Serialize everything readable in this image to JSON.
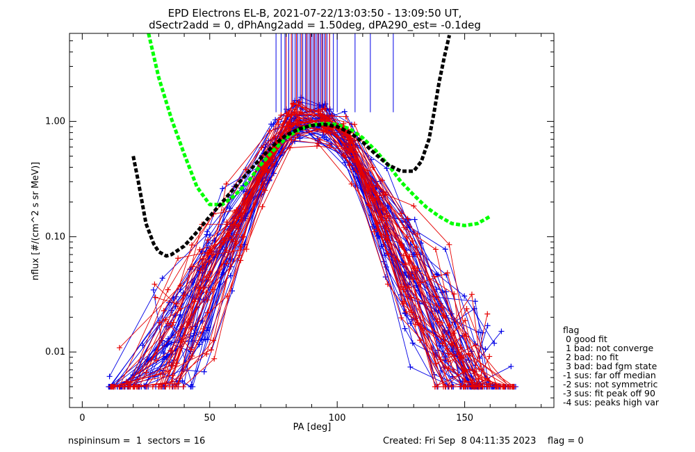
{
  "chart_data": {
    "type": "scatter",
    "title": "EPD Electrons EL-B, 2021-07-22/13:03:50 - 13:09:50 UT,",
    "subtitle": "dSectr2add = 0, dPhAng2add = 1.50deg, dPA290_est=  -0.1deg",
    "xlabel": "PA [deg]",
    "ylabel": "nflux [#/(cm^2 s sr MeV)]",
    "xlim": [
      -5,
      185
    ],
    "ylim": [
      0.0033,
      5.8
    ],
    "y_scale": "log",
    "x_ticks": [
      0,
      50,
      100,
      150
    ],
    "x_tick_labels": [
      "0",
      "50",
      "100",
      "150"
    ],
    "y_ticks": [
      0.01,
      0.1,
      1.0
    ],
    "y_tick_labels": [
      "0.01",
      "0.10",
      "1.00"
    ],
    "grid": false,
    "series": [
      {
        "color": "#0000e6",
        "seed": 7,
        "tracks": 42,
        "vertical_marks_x": [
          76,
          78,
          79.5,
          81,
          82.5,
          83.5,
          84.5,
          85.5,
          86.5,
          87.5,
          88.2,
          89,
          89.8,
          90.5,
          91.3,
          92,
          92.8,
          93.5,
          94.3,
          95,
          96,
          97,
          98.5,
          100,
          107,
          113,
          122
        ]
      },
      {
        "color": "#e60000",
        "seed": 23,
        "tracks": 34,
        "vertical_marks_x": [
          80,
          82,
          84,
          86,
          88,
          89.5,
          91,
          92.5,
          94,
          95.5,
          97
        ]
      },
      {
        "color": "#00ff00",
        "style": "dashed-fit",
        "x": [
          26,
          30,
          35,
          40,
          45,
          50,
          55,
          60,
          65,
          70,
          75,
          80,
          85,
          90,
          95,
          100,
          105,
          110,
          115,
          120,
          125,
          130,
          135,
          140,
          145,
          150,
          155,
          160
        ],
        "y": [
          5.8,
          2.4,
          1.05,
          0.52,
          0.27,
          0.19,
          0.19,
          0.23,
          0.3,
          0.42,
          0.56,
          0.72,
          0.85,
          0.93,
          0.96,
          0.94,
          0.86,
          0.72,
          0.56,
          0.42,
          0.3,
          0.23,
          0.18,
          0.15,
          0.13,
          0.125,
          0.13,
          0.15
        ]
      },
      {
        "color": "#000000",
        "style": "dashed-fit",
        "x": [
          20,
          22,
          25,
          28,
          30,
          33,
          35,
          40,
          45,
          50,
          55,
          60,
          65,
          70,
          75,
          80,
          85,
          90,
          95,
          100,
          105,
          110,
          115,
          120,
          125,
          130,
          133,
          136,
          138,
          140,
          142,
          144
        ],
        "y": [
          0.5,
          0.3,
          0.13,
          0.087,
          0.074,
          0.068,
          0.07,
          0.083,
          0.11,
          0.15,
          0.2,
          0.27,
          0.36,
          0.48,
          0.62,
          0.76,
          0.86,
          0.92,
          0.94,
          0.9,
          0.8,
          0.66,
          0.52,
          0.42,
          0.37,
          0.37,
          0.45,
          0.7,
          1.2,
          2.2,
          3.6,
          5.6
        ]
      }
    ],
    "legend": {
      "placement": "bottom-right, outside plot",
      "title": "flag",
      "entries": [
        " 0 good fit",
        " 1 bad: not converge",
        " 2 bad: no fit",
        " 3 bad: bad fgm state",
        "-1 sus: far off median",
        "-2 sus: not symmetric",
        "-3 sus: fit peak off 90",
        "-4 sus: peaks high var"
      ]
    }
  },
  "footer": {
    "left": "nspininsum =  1  sectors = 16",
    "right": "Created: Fri Sep  8 04:11:35 2023    flag = 0"
  }
}
